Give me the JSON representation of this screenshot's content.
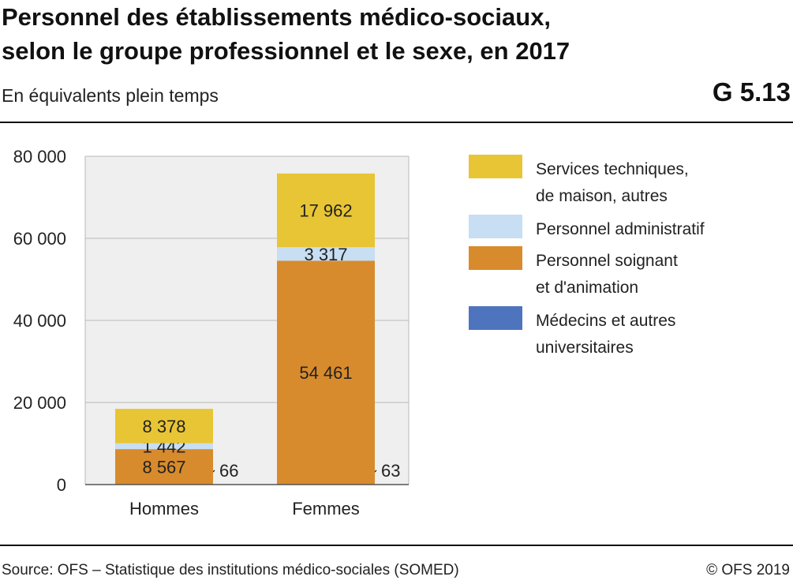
{
  "header": {
    "title_line1": "Personnel des établissements médico-sociaux,",
    "title_line2": "selon le groupe professionnel et le sexe, en 2017",
    "subtitle": "En équivalents plein temps",
    "figure_number": "G 5.13"
  },
  "footer": {
    "source": "Source: OFS – Statistique des institutions médico-sociales (SOMED)",
    "copyright": "© OFS 2019"
  },
  "chart_data": {
    "type": "bar",
    "stacked": true,
    "categories": [
      "Hommes",
      "Femmes"
    ],
    "ylim": [
      0,
      80000
    ],
    "yticks": [
      0,
      20000,
      40000,
      60000,
      80000
    ],
    "ytick_labels": [
      "0",
      "20 000",
      "40 000",
      "60 000",
      "80 000"
    ],
    "grid": true,
    "legend_position": "right",
    "series": [
      {
        "name": "Médecins et autres universitaires",
        "name_lines": [
          "Médecins et autres",
          "universitaires"
        ],
        "color": "#4f74be",
        "values": [
          66,
          63
        ],
        "labels": [
          "66",
          "63"
        ]
      },
      {
        "name": "Personnel soignant et d'animation",
        "name_lines": [
          "Personnel soignant",
          "et d'animation"
        ],
        "color": "#d88b2c",
        "values": [
          8567,
          54461
        ],
        "labels": [
          "8 567",
          "54 461"
        ]
      },
      {
        "name": "Personnel administratif",
        "name_lines": [
          "Personnel administratif"
        ],
        "color": "#c7def3",
        "values": [
          1442,
          3317
        ],
        "labels": [
          "1 442",
          "3 317"
        ]
      },
      {
        "name": "Services techniques, de maison, autres",
        "name_lines": [
          "Services techniques,",
          "de maison, autres"
        ],
        "color": "#e8c534",
        "values": [
          8378,
          17962
        ],
        "labels": [
          "8 378",
          "17 962"
        ]
      }
    ],
    "legend_order": [
      3,
      2,
      1,
      0
    ],
    "plot_background": "#efefef",
    "grid_color": "#b8b8b8"
  }
}
